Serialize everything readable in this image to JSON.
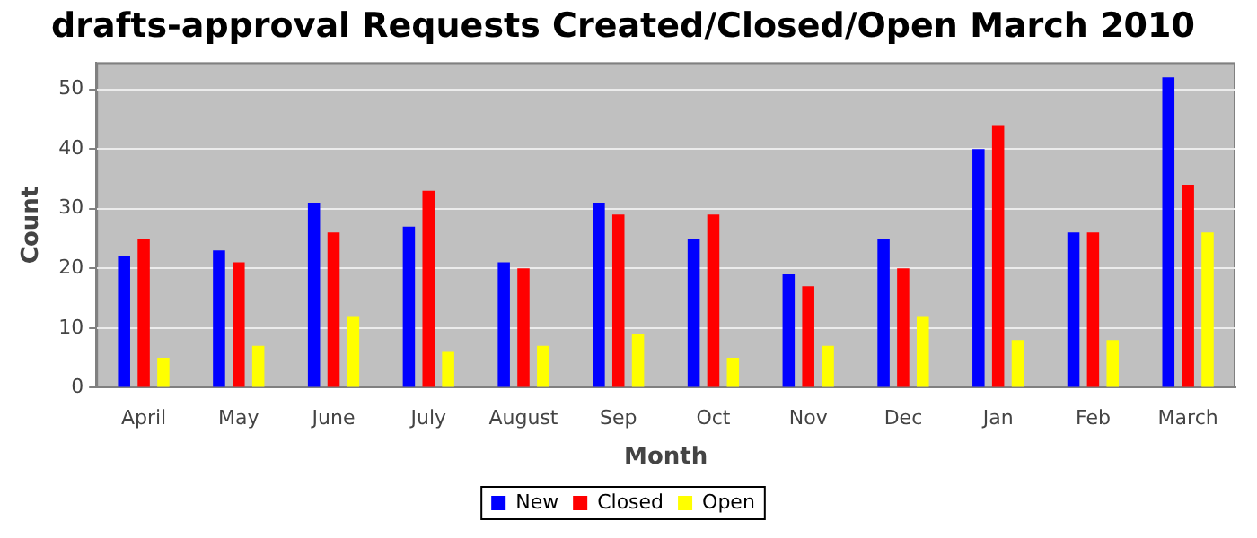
{
  "chart_data": {
    "type": "bar",
    "title": "drafts-approval Requests Created/Closed/Open March 2010",
    "xlabel": "Month",
    "ylabel": "Count",
    "categories": [
      "April",
      "May",
      "June",
      "July",
      "August",
      "Sep",
      "Oct",
      "Nov",
      "Dec",
      "Jan",
      "Feb",
      "March"
    ],
    "series": [
      {
        "name": "New",
        "color": "#0000ff",
        "values": [
          22,
          23,
          31,
          27,
          21,
          31,
          25,
          19,
          25,
          40,
          26,
          52
        ]
      },
      {
        "name": "Closed",
        "color": "#ff0000",
        "values": [
          25,
          21,
          26,
          33,
          20,
          29,
          29,
          17,
          20,
          44,
          26,
          34
        ]
      },
      {
        "name": "Open",
        "color": "#ffff00",
        "values": [
          5,
          7,
          12,
          6,
          7,
          9,
          5,
          7,
          12,
          8,
          8,
          26
        ]
      }
    ],
    "ylim": [
      0,
      54.5
    ],
    "yticks": [
      0,
      10,
      20,
      30,
      40,
      50
    ],
    "grid": "y",
    "legend": "bottom"
  }
}
